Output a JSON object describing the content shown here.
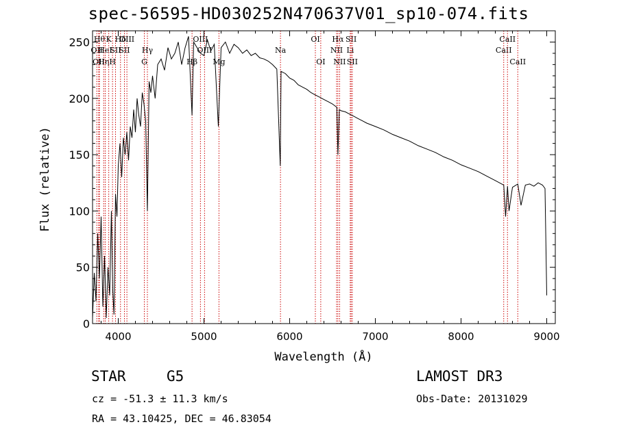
{
  "chart_data": {
    "type": "line",
    "title": "spec-56595-HD030252N470637V01_sp10-074.fits",
    "xlabel": "Wavelength (Å)",
    "ylabel": "Flux (relative)",
    "xlim": [
      3700,
      9100
    ],
    "ylim": [
      0,
      260
    ],
    "xticks": [
      4000,
      5000,
      6000,
      7000,
      8000,
      9000
    ],
    "yticks": [
      0,
      50,
      100,
      150,
      200,
      250
    ],
    "grid": false,
    "series": [
      {
        "x": [
          3700,
          3720,
          3740,
          3760,
          3780,
          3800,
          3820,
          3840,
          3860,
          3880,
          3900,
          3920,
          3935,
          3950,
          3968,
          3985,
          4000,
          4020,
          4040,
          4060,
          4080,
          4100,
          4120,
          4140,
          4160,
          4180,
          4200,
          4220,
          4240,
          4260,
          4280,
          4300,
          4320,
          4340,
          4360,
          4380,
          4400,
          4430,
          4460,
          4500,
          4540,
          4580,
          4620,
          4660,
          4700,
          4740,
          4780,
          4820,
          4861,
          4880,
          4920,
          4960,
          5000,
          5040,
          5080,
          5120,
          5168,
          5200,
          5250,
          5300,
          5350,
          5400,
          5450,
          5500,
          5550,
          5600,
          5650,
          5700,
          5750,
          5800,
          5850,
          5890,
          5900,
          5950,
          6000,
          6050,
          6100,
          6150,
          6200,
          6250,
          6300,
          6350,
          6400,
          6450,
          6500,
          6550,
          6563,
          6580,
          6600,
          6650,
          6700,
          6750,
          6800,
          6850,
          6900,
          7000,
          7100,
          7200,
          7300,
          7400,
          7500,
          7600,
          7700,
          7800,
          7900,
          8000,
          8100,
          8200,
          8300,
          8400,
          8498,
          8520,
          8542,
          8560,
          8600,
          8662,
          8700,
          8750,
          8800,
          8850,
          8900,
          8950,
          8980,
          9000
        ],
        "y": [
          5,
          45,
          20,
          80,
          40,
          95,
          15,
          60,
          5,
          50,
          25,
          100,
          30,
          8,
          115,
          95,
          140,
          160,
          130,
          165,
          150,
          170,
          145,
          175,
          165,
          190,
          170,
          200,
          185,
          175,
          205,
          195,
          180,
          100,
          215,
          205,
          220,
          200,
          230,
          235,
          225,
          245,
          235,
          240,
          250,
          230,
          245,
          255,
          185,
          250,
          245,
          240,
          238,
          252,
          242,
          248,
          175,
          245,
          250,
          240,
          248,
          245,
          240,
          243,
          238,
          240,
          236,
          235,
          233,
          230,
          226,
          140,
          224,
          222,
          218,
          216,
          212,
          210,
          208,
          205,
          203,
          201,
          199,
          197,
          195,
          192,
          150,
          190,
          189,
          188,
          186,
          184,
          182,
          180,
          178,
          175,
          172,
          168,
          165,
          162,
          158,
          155,
          152,
          148,
          145,
          141,
          138,
          135,
          131,
          127,
          123,
          95,
          122,
          100,
          121,
          124,
          105,
          123,
          124,
          122,
          125,
          123,
          120,
          25
        ]
      }
    ],
    "annotations": [
      {
        "x": 3750,
        "label": "OII",
        "row": 2
      },
      {
        "x": 3772,
        "label": "OII",
        "row": 3
      },
      {
        "x": 3780,
        "label": "Hθ",
        "row": 1
      },
      {
        "x": 3830,
        "label": "Hη",
        "row": 3
      },
      {
        "x": 3848,
        "label": "HeI",
        "row": 2
      },
      {
        "x": 3889,
        "label": "K",
        "row": 1
      },
      {
        "x": 3933,
        "label": "H",
        "row": 3
      },
      {
        "x": 3968,
        "label": "SII",
        "row": 2
      },
      {
        "x": 4026,
        "label": "Hδ",
        "row": 1
      },
      {
        "x": 4072,
        "label": "SII",
        "row": 2
      },
      {
        "x": 4101,
        "label": "OIII",
        "row": 1
      },
      {
        "x": 4340,
        "label": "Hγ",
        "row": 2
      },
      {
        "x": 4304,
        "label": "G",
        "row": 3
      },
      {
        "x": 4861,
        "label": "Hβ",
        "row": 3
      },
      {
        "x": 4959,
        "label": "OIII",
        "row": 1
      },
      {
        "x": 5007,
        "label": "OIII",
        "row": 2
      },
      {
        "x": 5175,
        "label": "Mg",
        "row": 3
      },
      {
        "x": 5893,
        "label": "Na",
        "row": 2
      },
      {
        "x": 6300,
        "label": "OI",
        "row": 1
      },
      {
        "x": 6363,
        "label": "OI",
        "row": 3
      },
      {
        "x": 6548,
        "label": "NII",
        "row": 2
      },
      {
        "x": 6563,
        "label": "Hα",
        "row": 1
      },
      {
        "x": 6583,
        "label": "NII",
        "row": 3
      },
      {
        "x": 6707,
        "label": "Li",
        "row": 2
      },
      {
        "x": 6717,
        "label": "SII",
        "row": 1
      },
      {
        "x": 6731,
        "label": "SII",
        "row": 3
      },
      {
        "x": 8498,
        "label": "CaII",
        "row": 2
      },
      {
        "x": 8542,
        "label": "CaII",
        "row": 1
      },
      {
        "x": 8662,
        "label": "CaII",
        "row": 3
      }
    ]
  },
  "info": {
    "object_class": "STAR",
    "subclass": "G5",
    "survey": "LAMOST DR3",
    "redshift": "cz = -51.3 ± 11.3 km/s",
    "obs_date": "Obs-Date: 20131029",
    "coords": "RA =  43.10425, DEC =  46.83054"
  },
  "colors": {
    "spectrum": "#000000",
    "line_markers": "#cc0000",
    "background": "#ffffff"
  }
}
